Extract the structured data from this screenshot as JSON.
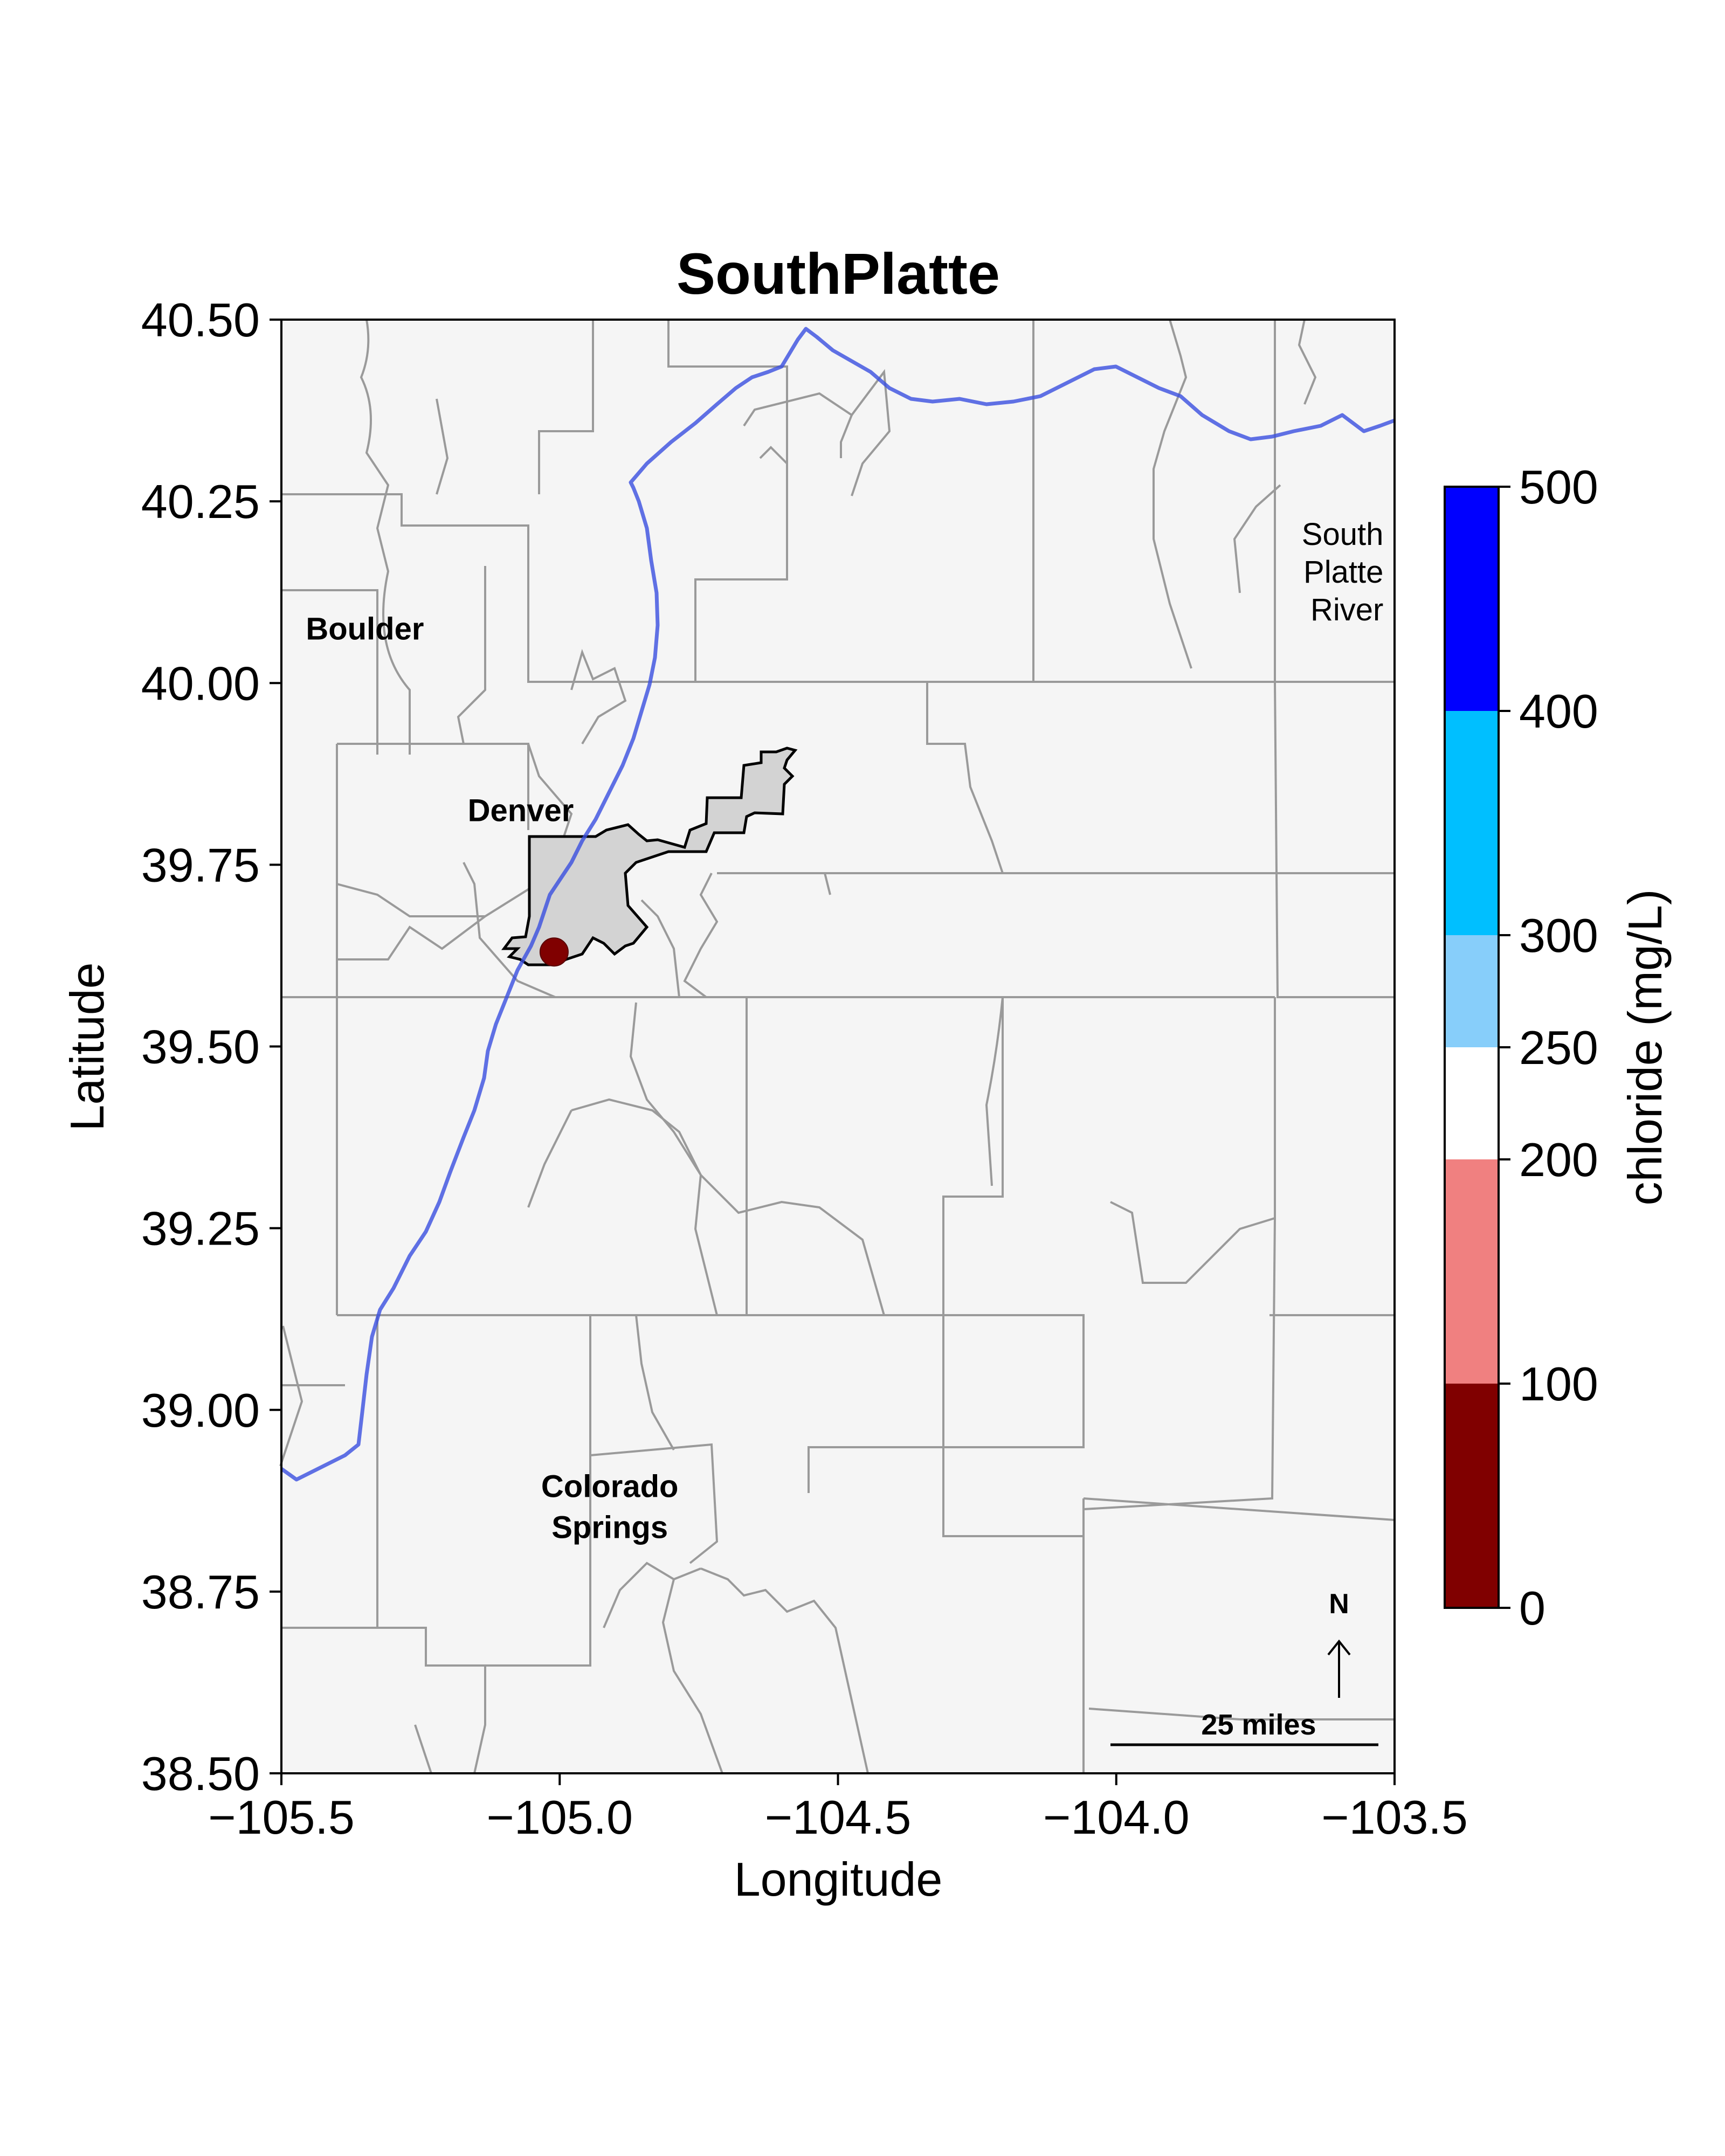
{
  "title": "SouthPlatte",
  "x_axis": {
    "label": "Longitude",
    "range": [
      -105.5,
      -103.5
    ],
    "ticks": [
      {
        "value": -105.5,
        "label": "−105.5"
      },
      {
        "value": -105.0,
        "label": "−105.0"
      },
      {
        "value": -104.5,
        "label": "−104.5"
      },
      {
        "value": -104.0,
        "label": "−104.0"
      },
      {
        "value": -103.5,
        "label": "−103.5"
      }
    ]
  },
  "y_axis": {
    "label": "Latitude",
    "range": [
      38.5,
      40.5
    ],
    "ticks": [
      {
        "value": 38.5,
        "label": "38.50"
      },
      {
        "value": 38.75,
        "label": "38.75"
      },
      {
        "value": 39.0,
        "label": "39.00"
      },
      {
        "value": 39.25,
        "label": "39.25"
      },
      {
        "value": 39.5,
        "label": "39.50"
      },
      {
        "value": 39.75,
        "label": "39.75"
      },
      {
        "value": 40.0,
        "label": "40.00"
      },
      {
        "value": 40.25,
        "label": "40.25"
      },
      {
        "value": 40.5,
        "label": "40.50"
      }
    ]
  },
  "colorbar": {
    "label": "chloride (mg/L)",
    "range": [
      0,
      500
    ],
    "bins": [
      {
        "from": 0,
        "to": 100,
        "color": "#800000"
      },
      {
        "from": 100,
        "to": 200,
        "color": "#f08080"
      },
      {
        "from": 200,
        "to": 250,
        "color": "#ffffff"
      },
      {
        "from": 250,
        "to": 300,
        "color": "#87cefa"
      },
      {
        "from": 300,
        "to": 400,
        "color": "#00bfff"
      },
      {
        "from": 400,
        "to": 500,
        "color": "#0000ff"
      }
    ],
    "ticks": [
      {
        "value": 0,
        "label": "0"
      },
      {
        "value": 100,
        "label": "100"
      },
      {
        "value": 200,
        "label": "200"
      },
      {
        "value": 250,
        "label": "250"
      },
      {
        "value": 300,
        "label": "300"
      },
      {
        "value": 400,
        "label": "400"
      },
      {
        "value": 500,
        "label": "500"
      }
    ]
  },
  "city_labels": [
    {
      "lines": [
        "Boulder"
      ],
      "lon": -105.35,
      "lat": 40.06
    },
    {
      "lines": [
        "Denver"
      ],
      "lon": -105.07,
      "lat": 39.81
    },
    {
      "lines": [
        "Colorado",
        "Springs"
      ],
      "lon": -104.91,
      "lat": 38.88
    }
  ],
  "river_label": {
    "lines": [
      "South",
      "Platte",
      "River"
    ],
    "lon": -103.52,
    "lat": 40.19
  },
  "station": {
    "lon": -105.01,
    "lat": 39.63,
    "value_bin": "0-100",
    "color": "#800000"
  },
  "north_arrow": {
    "label": "N"
  },
  "scale_bar": {
    "label": "25 miles"
  },
  "colors": {
    "map_background": "#f5f5f5",
    "county_lines": "#999999",
    "river": "#3a4fe0",
    "urban_fill": "#d3d3d3",
    "urban_outline": "#000000"
  }
}
